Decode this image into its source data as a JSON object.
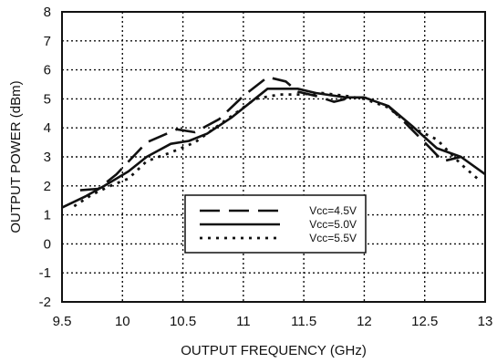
{
  "chart_data": {
    "type": "line",
    "xlabel": "OUTPUT FREQUENCY (GHz)",
    "ylabel": "OUTPUT POWER (dBm)",
    "xlim": [
      9.5,
      13
    ],
    "ylim": [
      -2,
      8
    ],
    "xticks": [
      "9.5",
      "10",
      "10.5",
      "11",
      "11.5",
      "12",
      "12.5",
      "13"
    ],
    "yticks": [
      "-2",
      "-1",
      "0",
      "1",
      "2",
      "3",
      "4",
      "5",
      "6",
      "7",
      "8"
    ],
    "grid": true,
    "legend_position": "lower-center",
    "series": [
      {
        "name": "Vcc=4.5V",
        "style": "dashed",
        "points": [
          [
            9.65,
            1.85
          ],
          [
            9.8,
            1.9
          ],
          [
            9.95,
            2.4
          ],
          [
            10.2,
            3.5
          ],
          [
            10.45,
            3.95
          ],
          [
            10.6,
            3.85
          ],
          [
            10.8,
            4.3
          ],
          [
            11.0,
            5.1
          ],
          [
            11.2,
            5.75
          ],
          [
            11.35,
            5.6
          ],
          [
            11.45,
            5.25
          ],
          [
            11.6,
            5.1
          ],
          [
            11.75,
            4.9
          ],
          [
            11.9,
            5.05
          ],
          [
            12.0,
            5.05
          ],
          [
            12.2,
            4.75
          ],
          [
            12.5,
            3.5
          ],
          [
            12.65,
            2.85
          ],
          [
            12.8,
            3.0
          ]
        ]
      },
      {
        "name": "Vcc=5.0V",
        "style": "solid",
        "points": [
          [
            9.5,
            1.25
          ],
          [
            9.7,
            1.65
          ],
          [
            9.85,
            2.0
          ],
          [
            10.05,
            2.5
          ],
          [
            10.2,
            3.0
          ],
          [
            10.4,
            3.45
          ],
          [
            10.55,
            3.55
          ],
          [
            10.7,
            3.8
          ],
          [
            10.9,
            4.35
          ],
          [
            11.05,
            4.85
          ],
          [
            11.2,
            5.35
          ],
          [
            11.45,
            5.35
          ],
          [
            11.6,
            5.2
          ],
          [
            11.85,
            5.05
          ],
          [
            12.0,
            5.05
          ],
          [
            12.2,
            4.75
          ],
          [
            12.4,
            4.05
          ],
          [
            12.6,
            3.3
          ],
          [
            12.8,
            3.0
          ],
          [
            13.0,
            2.4
          ]
        ]
      },
      {
        "name": "Vcc=5.5V",
        "style": "dotted",
        "points": [
          [
            9.6,
            1.3
          ],
          [
            9.75,
            1.7
          ],
          [
            9.9,
            2.0
          ],
          [
            10.05,
            2.25
          ],
          [
            10.2,
            2.85
          ],
          [
            10.4,
            3.15
          ],
          [
            10.6,
            3.5
          ],
          [
            10.8,
            4.1
          ],
          [
            10.95,
            4.55
          ],
          [
            11.1,
            5.0
          ],
          [
            11.3,
            5.15
          ],
          [
            11.45,
            5.15
          ],
          [
            11.65,
            5.2
          ],
          [
            11.85,
            5.1
          ],
          [
            12.0,
            5.0
          ],
          [
            12.2,
            4.7
          ],
          [
            12.4,
            4.0
          ],
          [
            12.6,
            3.6
          ],
          [
            12.8,
            2.75
          ],
          [
            12.95,
            2.2
          ]
        ]
      }
    ]
  }
}
